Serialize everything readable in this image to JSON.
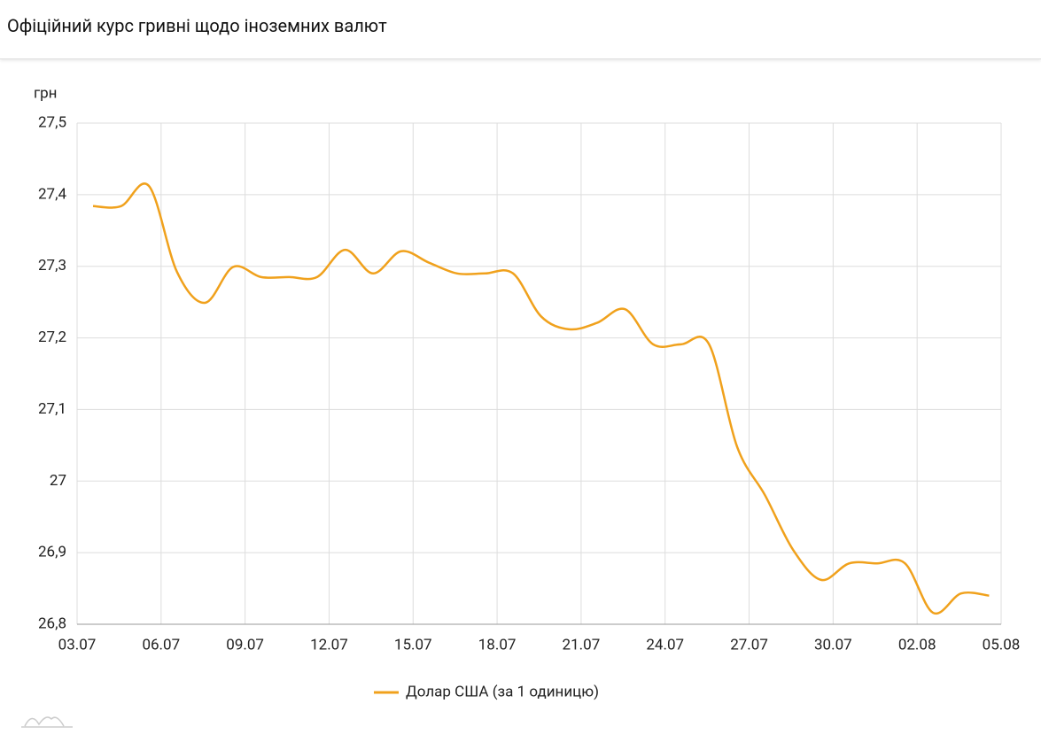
{
  "chart_data": {
    "type": "line",
    "title": "Офіційний курс гривні щодо іноземних валют",
    "y_label": "грн",
    "x": [
      0.57,
      1.57,
      2.57,
      3.57,
      4.57,
      5.57,
      6.57,
      7.57,
      8.57,
      9.57,
      10.57,
      11.57,
      12.57,
      13.57,
      14.57,
      15.57,
      16.57,
      17.57,
      18.57,
      19.57,
      20.57,
      21.57,
      22.57,
      23.57,
      24.57,
      25.57,
      26.57,
      27.57,
      28.57,
      29.57,
      30.57,
      31.57,
      32.57
    ],
    "series": [
      {
        "name": "Долар США (за 1 одиницю)",
        "color": "#f0a11c",
        "values": [
          27.384,
          27.384,
          27.412,
          27.292,
          27.249,
          27.299,
          27.285,
          27.285,
          27.285,
          27.323,
          27.29,
          27.321,
          27.305,
          27.29,
          27.29,
          27.29,
          27.23,
          27.212,
          27.221,
          27.24,
          27.191,
          27.191,
          27.191,
          27.048,
          26.98,
          26.904,
          26.862,
          26.885,
          26.885,
          26.885,
          26.816,
          26.843,
          26.84
        ]
      }
    ],
    "xlim": [
      0,
      33
    ],
    "xticks": [
      {
        "value": 0,
        "label": "03.07"
      },
      {
        "value": 3,
        "label": "06.07"
      },
      {
        "value": 6,
        "label": "09.07"
      },
      {
        "value": 9,
        "label": "12.07"
      },
      {
        "value": 12,
        "label": "15.07"
      },
      {
        "value": 15,
        "label": "18.07"
      },
      {
        "value": 18,
        "label": "21.07"
      },
      {
        "value": 21,
        "label": "24.07"
      },
      {
        "value": 24,
        "label": "27.07"
      },
      {
        "value": 27,
        "label": "30.07"
      },
      {
        "value": 30,
        "label": "02.08"
      },
      {
        "value": 33,
        "label": "05.08"
      }
    ],
    "ylim": [
      26.8,
      27.5
    ],
    "yticks": [
      {
        "value": 26.8,
        "label": "26,8"
      },
      {
        "value": 26.9,
        "label": "26,9"
      },
      27,
      {
        "value": 27.1,
        "label": "27,1"
      },
      {
        "value": 27.2,
        "label": "27,2"
      },
      {
        "value": 27.3,
        "label": "27,3"
      },
      {
        "value": 27.4,
        "label": "27,4"
      },
      {
        "value": 27.5,
        "label": "27,5"
      }
    ],
    "grid": true
  }
}
